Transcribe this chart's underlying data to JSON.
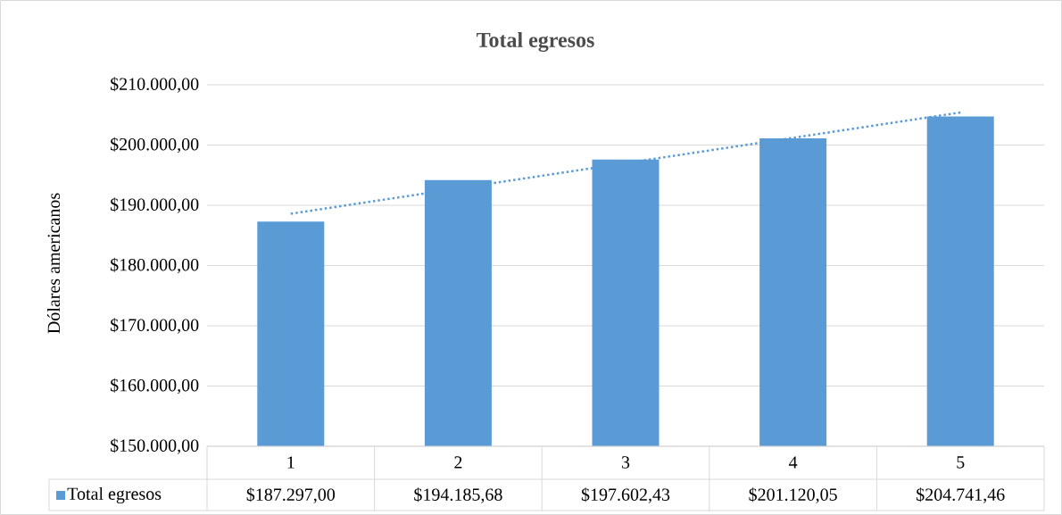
{
  "chart_data": {
    "type": "bar",
    "title": "Total egresos",
    "ylabel": "Dólares americanos",
    "categories": [
      "1",
      "2",
      "3",
      "4",
      "5"
    ],
    "series": [
      {
        "name": "Total egresos",
        "color": "#5b9bd5",
        "values": [
          187297.0,
          194185.68,
          197602.43,
          201120.05,
          204741.46
        ],
        "value_labels": [
          "$187.297,00",
          "$194.185,68",
          "$197.602,43",
          "$201.120,05",
          "$204.741,46"
        ]
      },
      {
        "type": "line",
        "x": [
          "1",
          "5"
        ],
        "values": [
          188600,
          205400
        ],
        "color": "#5b9bd5",
        "line_style": "dotted"
      }
    ],
    "ylim": [
      150000,
      210000
    ],
    "yticks": [
      {
        "value": 150000,
        "label": "$150.000,00"
      },
      {
        "value": 160000,
        "label": "$160.000,00"
      },
      {
        "value": 170000,
        "label": "$170.000,00"
      },
      {
        "value": 180000,
        "label": "$180.000,00"
      },
      {
        "value": 190000,
        "label": "$190.000,00"
      },
      {
        "value": 200000,
        "label": "$200.000,00"
      },
      {
        "value": 210000,
        "label": "$210.000,00"
      }
    ],
    "grid": "y",
    "legend": "bottom"
  }
}
